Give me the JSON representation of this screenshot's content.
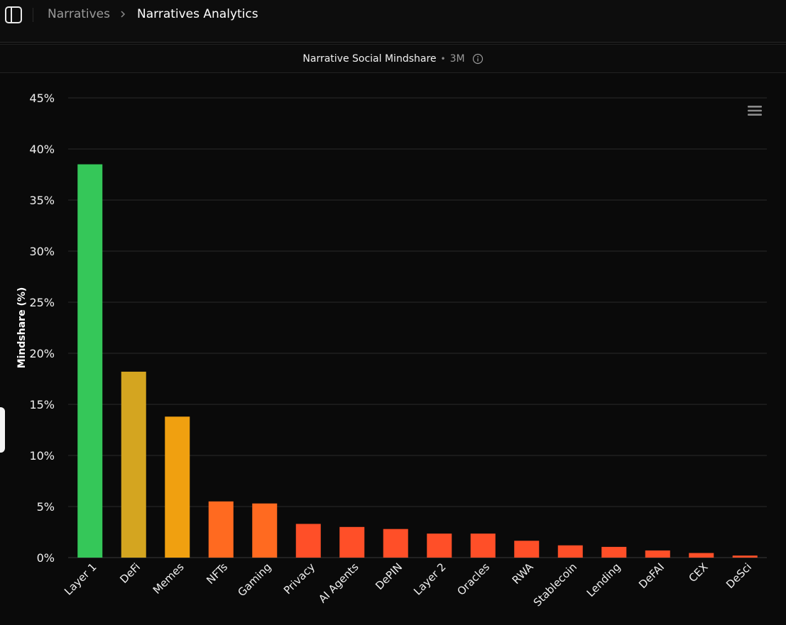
{
  "breadcrumb": {
    "items": [
      "Narratives",
      "Narratives Analytics"
    ]
  },
  "icons": {
    "sidebar_toggle": "sidebar-panel-icon",
    "separator": "chevron-right-icon",
    "info": "info-icon",
    "menu": "hamburger-menu-icon"
  },
  "chart_header": {
    "title": "Narrative Social Mindshare",
    "range": "3M"
  },
  "colors": {
    "background": "#0a0a0a",
    "gridline": "#2a2a2a"
  },
  "chart_data": {
    "type": "bar",
    "title": "",
    "xlabel": "",
    "ylabel": "Mindshare (%)",
    "ylim": [
      0,
      45
    ],
    "yticks": [
      "0%",
      "5%",
      "10%",
      "15%",
      "20%",
      "25%",
      "30%",
      "35%",
      "40%",
      "45%"
    ],
    "grid": true,
    "categories": [
      "Layer 1",
      "DeFi",
      "Memes",
      "NFTs",
      "Gaming",
      "Privacy",
      "AI Agents",
      "DePIN",
      "Layer 2",
      "Oracles",
      "RWA",
      "Stablecoin",
      "Lending",
      "DeFAI",
      "CEX",
      "DeSci"
    ],
    "values": [
      38.5,
      18.2,
      13.8,
      5.5,
      5.3,
      3.3,
      3.0,
      2.8,
      2.35,
      2.35,
      1.65,
      1.2,
      1.05,
      0.7,
      0.45,
      0.2
    ],
    "bar_colors": [
      "#35c759",
      "#d4a520",
      "#f0a010",
      "#ff6a20",
      "#ff6a20",
      "#ff4f28",
      "#ff4f28",
      "#ff4f28",
      "#ff4f28",
      "#ff4f28",
      "#ff4f28",
      "#ff4f28",
      "#ff4f28",
      "#ff4f28",
      "#ff4f28",
      "#ff4f28"
    ]
  }
}
